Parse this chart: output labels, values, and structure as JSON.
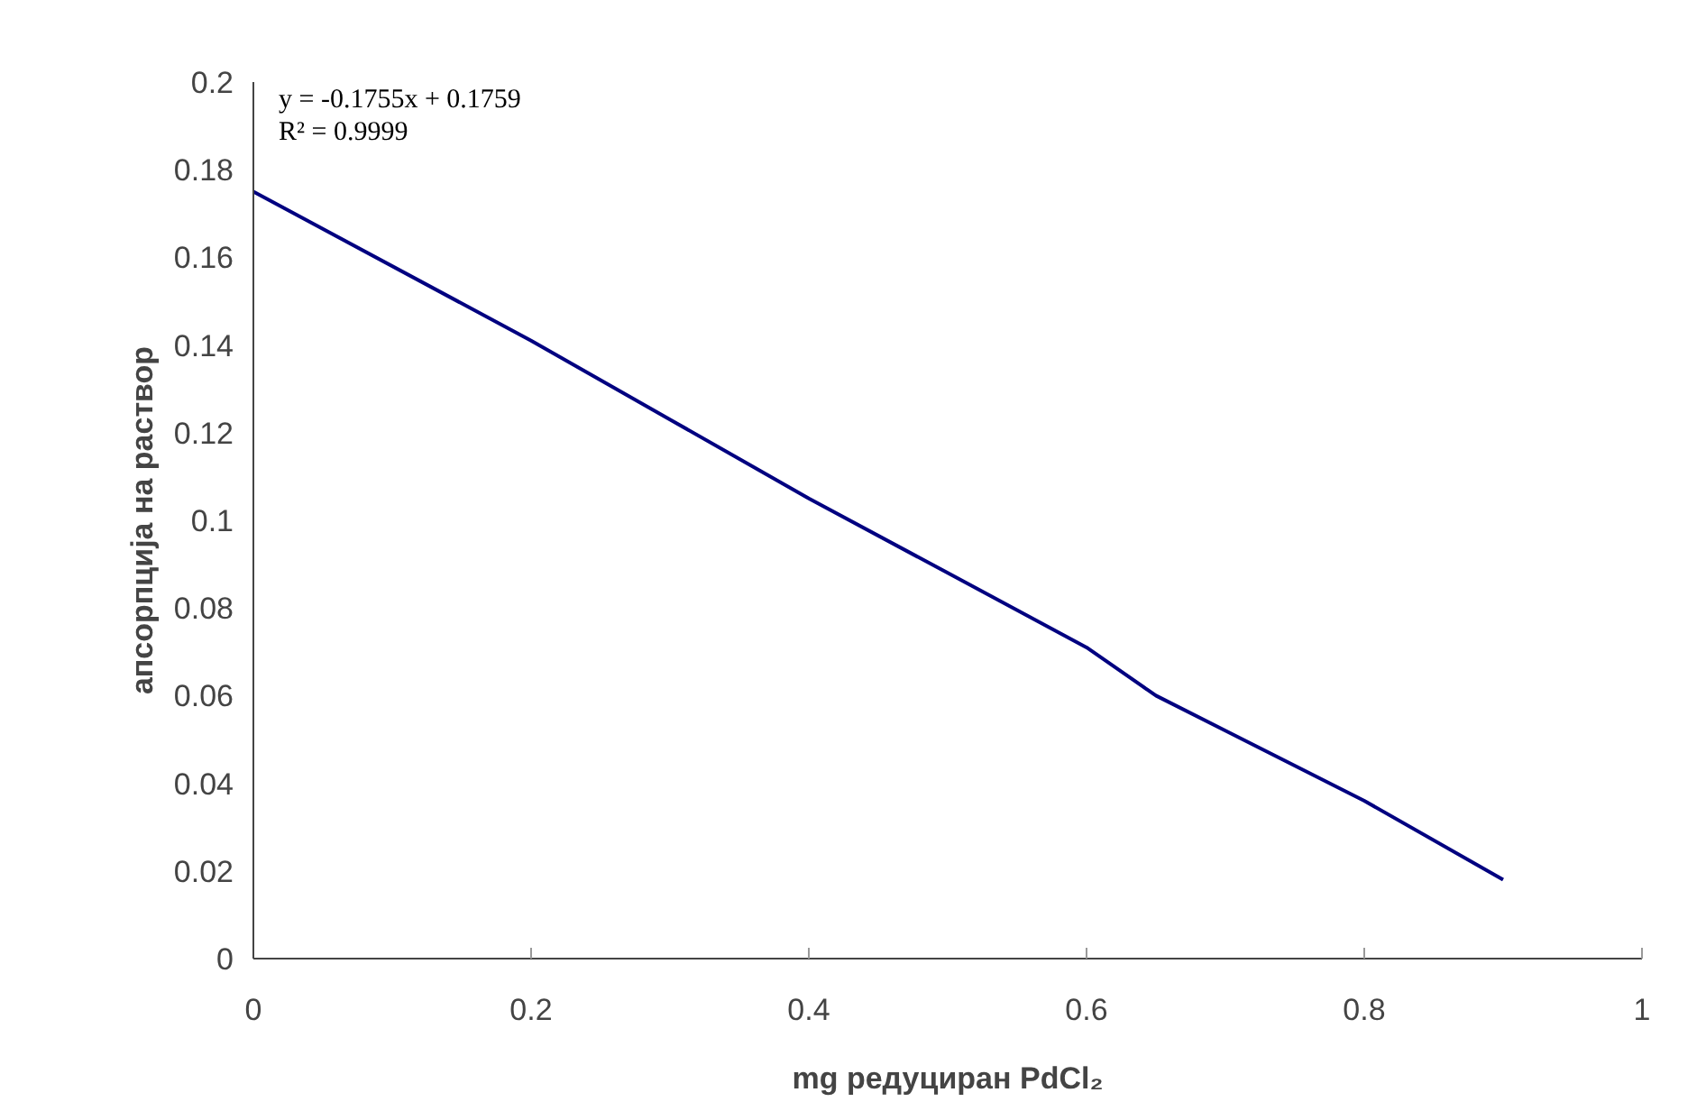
{
  "chart_data": {
    "type": "line",
    "xlabel": "mg редуциран PdCl₂",
    "ylabel": "апсорпција на раствор",
    "x": [
      0,
      0.2,
      0.3,
      0.4,
      0.5,
      0.6,
      0.65,
      0.7,
      0.8,
      0.9
    ],
    "series": [
      {
        "color": "#000080",
        "values": [
          0.175,
          0.141,
          0.123,
          0.105,
          0.088,
          0.071,
          0.06,
          0.052,
          0.036,
          0.018
        ]
      }
    ],
    "xlim": [
      0,
      1
    ],
    "xticks": [
      0,
      0.2,
      0.4,
      0.6,
      0.8,
      1
    ],
    "ylim": [
      0,
      0.2
    ],
    "yticks": [
      0,
      0.02,
      0.04,
      0.06,
      0.08,
      0.1,
      0.12,
      0.14,
      0.16,
      0.18,
      0.2
    ],
    "annotations": [
      "y = -0.1755x + 0.1759",
      "R² = 0.9999"
    ],
    "grid": false,
    "marker": "none",
    "line_style": "solid"
  }
}
